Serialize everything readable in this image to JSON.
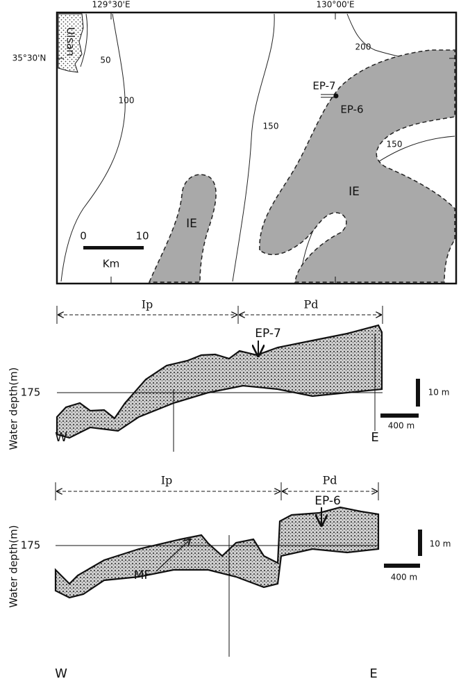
{
  "map": {
    "longitudes": [
      "129°30'E",
      "130°00'E"
    ],
    "latitude": "35°30'N",
    "place": "Ulsan",
    "contours": [
      "50",
      "100",
      "150",
      "200",
      "150"
    ],
    "areas": [
      "IE",
      "IE"
    ],
    "sites": [
      "EP-7",
      "EP-6"
    ],
    "scale": {
      "start": "0",
      "end": "10",
      "unit": "Km"
    }
  },
  "profiles": [
    {
      "units": [
        "Ip",
        "Pd"
      ],
      "site": "EP-7",
      "depth": "175",
      "axis_title": "Water depth(m)",
      "west": "W",
      "east": "E",
      "vscale": "10 m",
      "hscale": "400 m"
    },
    {
      "units": [
        "Ip",
        "Pd"
      ],
      "site": "EP-6",
      "feature": "MF",
      "depth": "175",
      "axis_title": "Water depth(m)",
      "west": "W",
      "east": "E",
      "vscale": "10 m",
      "hscale": "400 m"
    }
  ]
}
